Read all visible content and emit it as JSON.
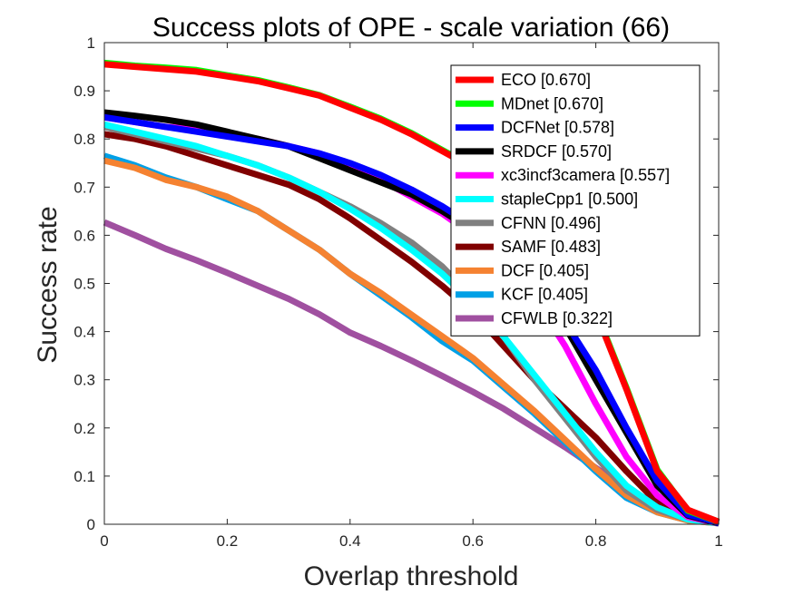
{
  "chart_data": {
    "type": "line",
    "title": "Success plots of OPE - scale variation (66)",
    "xlabel": "Overlap threshold",
    "ylabel": "Success rate",
    "xlim": [
      0,
      1
    ],
    "ylim": [
      0,
      1
    ],
    "xticks": [
      "0",
      "0.2",
      "0.4",
      "0.6",
      "0.8",
      "1"
    ],
    "yticks": [
      "0",
      "0.1",
      "0.2",
      "0.3",
      "0.4",
      "0.5",
      "0.6",
      "0.7",
      "0.8",
      "0.9",
      "1"
    ],
    "legend_position": "top-right",
    "grid": false,
    "x": [
      0,
      0.05,
      0.1,
      0.15,
      0.2,
      0.25,
      0.3,
      0.35,
      0.4,
      0.45,
      0.5,
      0.55,
      0.6,
      0.65,
      0.7,
      0.75,
      0.8,
      0.85,
      0.9,
      0.95,
      1
    ],
    "series": [
      {
        "name": "ECO [0.670]",
        "color": "#ff0000",
        "values": [
          0.955,
          0.95,
          0.945,
          0.94,
          0.93,
          0.92,
          0.905,
          0.89,
          0.865,
          0.84,
          0.81,
          0.775,
          0.74,
          0.69,
          0.63,
          0.55,
          0.44,
          0.28,
          0.11,
          0.03,
          0.005
        ]
      },
      {
        "name": "MDnet [0.670]",
        "color": "#00ff00",
        "values": [
          0.958,
          0.952,
          0.948,
          0.943,
          0.932,
          0.922,
          0.907,
          0.891,
          0.867,
          0.842,
          0.812,
          0.777,
          0.742,
          0.692,
          0.633,
          0.553,
          0.443,
          0.283,
          0.113,
          0.028,
          0.005
        ]
      },
      {
        "name": "DCFNet [0.578]",
        "color": "#0000ff",
        "values": [
          0.845,
          0.835,
          0.825,
          0.815,
          0.805,
          0.795,
          0.785,
          0.77,
          0.75,
          0.725,
          0.695,
          0.66,
          0.62,
          0.57,
          0.5,
          0.42,
          0.32,
          0.2,
          0.09,
          0.02,
          0.003
        ]
      },
      {
        "name": "SRDCF [0.570]",
        "color": "#000000",
        "values": [
          0.855,
          0.848,
          0.84,
          0.83,
          0.815,
          0.8,
          0.785,
          0.76,
          0.735,
          0.71,
          0.685,
          0.65,
          0.61,
          0.56,
          0.49,
          0.41,
          0.3,
          0.19,
          0.08,
          0.018,
          0.002
        ]
      },
      {
        "name": "xc3incf3camera [0.557]",
        "color": "#ff00ff",
        "values": [
          0.845,
          0.835,
          0.825,
          0.82,
          0.81,
          0.8,
          0.785,
          0.77,
          0.745,
          0.715,
          0.68,
          0.645,
          0.6,
          0.54,
          0.47,
          0.37,
          0.25,
          0.14,
          0.06,
          0.015,
          0.002
        ]
      },
      {
        "name": "stapleCpp1 [0.500]",
        "color": "#00ffff",
        "values": [
          0.83,
          0.815,
          0.8,
          0.785,
          0.765,
          0.745,
          0.72,
          0.69,
          0.655,
          0.615,
          0.57,
          0.52,
          0.46,
          0.39,
          0.31,
          0.23,
          0.15,
          0.08,
          0.035,
          0.01,
          0.002
        ]
      },
      {
        "name": "CFNN [0.496]",
        "color": "#808080",
        "values": [
          0.825,
          0.81,
          0.795,
          0.78,
          0.765,
          0.745,
          0.72,
          0.69,
          0.66,
          0.625,
          0.585,
          0.535,
          0.47,
          0.39,
          0.3,
          0.22,
          0.14,
          0.07,
          0.03,
          0.01,
          0.002
        ]
      },
      {
        "name": "SAMF [0.483]",
        "color": "#800000",
        "values": [
          0.81,
          0.8,
          0.785,
          0.765,
          0.745,
          0.725,
          0.705,
          0.675,
          0.635,
          0.59,
          0.545,
          0.495,
          0.44,
          0.37,
          0.3,
          0.24,
          0.18,
          0.11,
          0.045,
          0.012,
          0.002
        ]
      },
      {
        "name": "DCF [0.405]",
        "color": "#f58231",
        "values": [
          0.755,
          0.74,
          0.715,
          0.7,
          0.68,
          0.65,
          0.61,
          0.57,
          0.52,
          0.48,
          0.435,
          0.39,
          0.345,
          0.29,
          0.235,
          0.175,
          0.115,
          0.06,
          0.025,
          0.008,
          0.002
        ]
      },
      {
        "name": "KCF [0.405]",
        "color": "#00a0e6",
        "values": [
          0.765,
          0.745,
          0.72,
          0.7,
          0.675,
          0.65,
          0.61,
          0.57,
          0.52,
          0.475,
          0.43,
          0.38,
          0.34,
          0.285,
          0.23,
          0.17,
          0.11,
          0.055,
          0.025,
          0.008,
          0.002
        ]
      },
      {
        "name": "CFWLB [0.322]",
        "color": "#a050a0",
        "values": [
          0.627,
          0.6,
          0.572,
          0.548,
          0.522,
          0.495,
          0.468,
          0.436,
          0.398,
          0.37,
          0.34,
          0.308,
          0.275,
          0.24,
          0.2,
          0.16,
          0.117,
          0.075,
          0.04,
          0.015,
          0.002
        ]
      }
    ]
  }
}
